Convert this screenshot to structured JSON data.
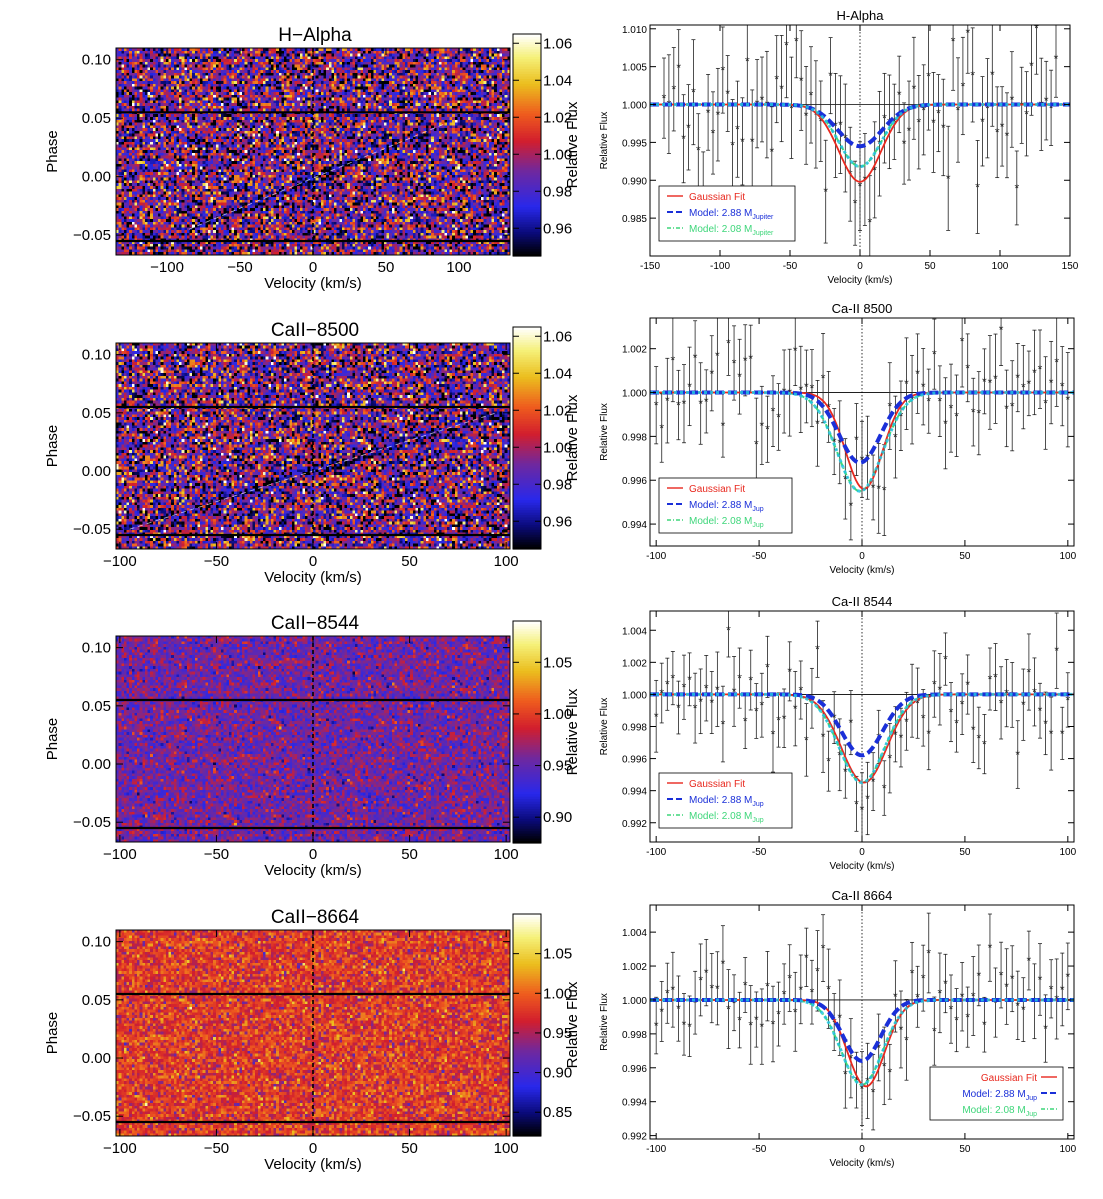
{
  "figure": {
    "colors": {
      "gaussian": "#e8281e",
      "model_288": "#1a2fd8",
      "model_208": "#3ed67a",
      "cyan": "#22c4e0",
      "data": "#222222",
      "axis": "#000000"
    }
  },
  "chart_data": [
    {
      "type": "heatmap",
      "title": "H−Alpha",
      "xlabel": "Velocity (km/s)",
      "ylabel": "Phase",
      "xlim": [
        -135,
        135
      ],
      "ylim": [
        -0.067,
        0.11
      ],
      "xticks": [
        -100,
        -50,
        0,
        50,
        100
      ],
      "xtick_labels": [
        "−100",
        "−50",
        "0",
        "50",
        "100"
      ],
      "yticks": [
        0.1,
        0.05,
        0.0,
        -0.05
      ],
      "ytick_labels": [
        "0.10",
        "0.05",
        "0.00",
        "−0.05"
      ],
      "hlines": [
        0.055,
        -0.055
      ],
      "colorbar": {
        "label": "Relative Flux",
        "range": [
          0.945,
          1.065
        ],
        "ticks": [
          0.96,
          0.98,
          1.0,
          1.02,
          1.04,
          1.06
        ],
        "tick_labels": [
          "0.96",
          "0.98",
          "1.00",
          "1.02",
          "1.04",
          "1.06"
        ]
      },
      "mean_flux": 0.988,
      "noise": 0.03,
      "trail": {
        "from": [
          -85,
          -0.045
        ],
        "to": [
          90,
          0.045
        ]
      }
    },
    {
      "type": "heatmap",
      "title": "CaII−8500",
      "xlabel": "Velocity (km/s)",
      "ylabel": "Phase",
      "xlim": [
        -102,
        102
      ],
      "ylim": [
        -0.067,
        0.11
      ],
      "xticks": [
        -100,
        -50,
        0,
        50,
        100
      ],
      "xtick_labels": [
        "−100",
        "−50",
        "0",
        "50",
        "100"
      ],
      "yticks": [
        0.1,
        0.05,
        0.0,
        -0.05
      ],
      "ytick_labels": [
        "0.10",
        "0.05",
        "0.00",
        "−0.05"
      ],
      "hlines": [
        0.055,
        -0.055
      ],
      "colorbar": {
        "label": "Relative Flux",
        "range": [
          0.945,
          1.065
        ],
        "ticks": [
          0.96,
          0.98,
          1.0,
          1.02,
          1.04,
          1.06
        ],
        "tick_labels": [
          "0.96",
          "0.98",
          "1.00",
          "1.02",
          "1.04",
          "1.06"
        ]
      },
      "mean_flux": 0.988,
      "noise": 0.03,
      "trail": {
        "from": [
          -95,
          -0.05
        ],
        "to": [
          95,
          0.05
        ]
      }
    },
    {
      "type": "heatmap",
      "title": "CaII−8544",
      "xlabel": "Velocity (km/s)",
      "ylabel": "Phase",
      "xlim": [
        -102,
        102
      ],
      "ylim": [
        -0.067,
        0.11
      ],
      "xticks": [
        -100,
        -50,
        0,
        50,
        100
      ],
      "xtick_labels": [
        "−100",
        "−50",
        "0",
        "50",
        "100"
      ],
      "yticks": [
        0.1,
        0.05,
        0.0,
        -0.05
      ],
      "ytick_labels": [
        "0.10",
        "0.05",
        "0.00",
        "−0.05"
      ],
      "hlines": [
        0.055,
        -0.055
      ],
      "colorbar": {
        "label": "Relative Flux",
        "range": [
          0.875,
          1.09
        ],
        "ticks": [
          0.9,
          0.95,
          1.0,
          1.05
        ],
        "tick_labels": [
          "0.90",
          "0.95",
          "1.00",
          "1.05"
        ]
      },
      "mean_flux": 0.955,
      "noise": 0.02,
      "trail": null
    },
    {
      "type": "heatmap",
      "title": "CaII−8664",
      "xlabel": "Velocity (km/s)",
      "ylabel": "Phase",
      "xlim": [
        -102,
        102
      ],
      "ylim": [
        -0.067,
        0.11
      ],
      "xticks": [
        -100,
        -50,
        0,
        50,
        100
      ],
      "xtick_labels": [
        "−100",
        "−50",
        "0",
        "50",
        "100"
      ],
      "yticks": [
        0.1,
        0.05,
        0.0,
        -0.05
      ],
      "ytick_labels": [
        "0.10",
        "0.05",
        "0.00",
        "−0.05"
      ],
      "hlines": [
        0.055,
        -0.055
      ],
      "colorbar": {
        "label": "Relative Flux",
        "range": [
          0.82,
          1.1
        ],
        "ticks": [
          0.85,
          0.9,
          0.95,
          1.0,
          1.05
        ],
        "tick_labels": [
          "0.85",
          "0.90",
          "0.95",
          "1.00",
          "1.05"
        ]
      },
      "mean_flux": 0.98,
      "noise": 0.024,
      "trail": null
    },
    {
      "type": "line",
      "title": "H-Alpha",
      "xlabel": "Velocity (km/s)",
      "ylabel": "Relative Flux",
      "xlim": [
        -150,
        150
      ],
      "ylim": [
        0.98,
        1.0105
      ],
      "xticks": [
        -150,
        -100,
        -50,
        0,
        50,
        100,
        150
      ],
      "xtick_labels": [
        "-150",
        "-100",
        "-50",
        "0",
        "50",
        "100",
        "150"
      ],
      "yticks": [
        0.985,
        0.99,
        0.995,
        1.0,
        1.005,
        1.01
      ],
      "ytick_labels": [
        "0.985",
        "0.990",
        "0.995",
        "1.000",
        "1.005",
        "1.010"
      ],
      "legend_position": "bottom-left",
      "legend": [
        {
          "label": "Gaussian Fit",
          "sub": "",
          "color": "#e8281e"
        },
        {
          "label": "Model: 2.88 M",
          "sub": "Jupiter",
          "color": "#1a2fd8"
        },
        {
          "label": "Model: 2.08 M",
          "sub": "Jupiter",
          "color": "#3ed67a"
        }
      ],
      "series": [
        {
          "name": "Gaussian Fit",
          "depth": 0.0102,
          "center": 0,
          "sigma": 15
        },
        {
          "name": "Model: 2.88 MJupiter",
          "depth": 0.0055,
          "center": 0,
          "sigma": 16
        },
        {
          "name": "Model: 2.08 MJupiter",
          "depth": 0.0082,
          "center": 0,
          "sigma": 15
        }
      ],
      "data": {
        "x_start": -140,
        "x_end": 140,
        "n": 81,
        "noise": 0.0045,
        "error": 0.006
      }
    },
    {
      "type": "line",
      "title": "Ca-II 8500",
      "xlabel": "Velocity (km/s)",
      "ylabel": "Relative Flux",
      "xlim": [
        -103,
        103
      ],
      "ylim": [
        0.993,
        1.0034
      ],
      "xticks": [
        -100,
        -50,
        0,
        50,
        100
      ],
      "xtick_labels": [
        "-100",
        "-50",
        "0",
        "50",
        "100"
      ],
      "yticks": [
        0.994,
        0.996,
        0.998,
        1.0,
        1.002
      ],
      "ytick_labels": [
        "0.994",
        "0.996",
        "0.998",
        "1.000",
        "1.002"
      ],
      "legend_position": "bottom-left",
      "legend": [
        {
          "label": "Gaussian Fit",
          "sub": "",
          "color": "#e8281e"
        },
        {
          "label": "Model: 2.88 M",
          "sub": "Jup",
          "color": "#1a2fd8"
        },
        {
          "label": "Model: 2.08 M",
          "sub": "Jup",
          "color": "#3ed67a"
        }
      ],
      "series": [
        {
          "name": "Gaussian Fit",
          "depth": 0.0044,
          "center": 1,
          "sigma": 9
        },
        {
          "name": "Model: 2.88 MJup",
          "depth": 0.0032,
          "center": -1,
          "sigma": 10
        },
        {
          "name": "Model: 2.08 MJup",
          "depth": 0.0045,
          "center": -1,
          "sigma": 11
        }
      ],
      "data": {
        "x_start": -100,
        "x_end": 100,
        "n": 75,
        "noise": 0.0012,
        "error": 0.0018
      }
    },
    {
      "type": "line",
      "title": "Ca-II 8544",
      "xlabel": "Velocity (km/s)",
      "ylabel": "Relative Flux",
      "xlim": [
        -103,
        103
      ],
      "ylim": [
        0.9908,
        1.0052
      ],
      "xticks": [
        -100,
        -50,
        0,
        50,
        100
      ],
      "xtick_labels": [
        "-100",
        "-50",
        "0",
        "50",
        "100"
      ],
      "yticks": [
        0.992,
        0.994,
        0.996,
        0.998,
        1.0,
        1.002,
        1.004
      ],
      "ytick_labels": [
        "0.992",
        "0.994",
        "0.996",
        "0.998",
        "1.000",
        "1.002",
        "1.004"
      ],
      "legend_position": "bottom-left",
      "legend": [
        {
          "label": "Gaussian Fit",
          "sub": "",
          "color": "#e8281e"
        },
        {
          "label": "Model: 2.88 M",
          "sub": "Jup",
          "color": "#1a2fd8"
        },
        {
          "label": "Model: 2.08 M",
          "sub": "Jup",
          "color": "#3ed67a"
        }
      ],
      "series": [
        {
          "name": "Gaussian Fit",
          "depth": 0.0055,
          "center": 1,
          "sigma": 11
        },
        {
          "name": "Model: 2.88 MJup",
          "depth": 0.0038,
          "center": 0,
          "sigma": 10
        },
        {
          "name": "Model: 2.08 MJup",
          "depth": 0.0055,
          "center": 0,
          "sigma": 11
        }
      ],
      "data": {
        "x_start": -100,
        "x_end": 100,
        "n": 75,
        "noise": 0.0016,
        "error": 0.002
      }
    },
    {
      "type": "line",
      "title": "Ca-II 8664",
      "xlabel": "Velocity (km/s)",
      "ylabel": "Relative Flux",
      "xlim": [
        -103,
        103
      ],
      "ylim": [
        0.9918,
        1.0056
      ],
      "xticks": [
        -100,
        -50,
        0,
        50,
        100
      ],
      "xtick_labels": [
        "-100",
        "-50",
        "0",
        "50",
        "100"
      ],
      "yticks": [
        0.992,
        0.994,
        0.996,
        0.998,
        1.0,
        1.002,
        1.004
      ],
      "ytick_labels": [
        "0.992",
        "0.994",
        "0.996",
        "0.998",
        "1.000",
        "1.002",
        "1.004"
      ],
      "legend_position": "bottom-right",
      "legend": [
        {
          "label": "Gaussian Fit",
          "sub": "",
          "color": "#e8281e"
        },
        {
          "label": "Model: 2.88 M",
          "sub": "Jup",
          "color": "#1a2fd8"
        },
        {
          "label": "Model: 2.08 M",
          "sub": "Jup",
          "color": "#3ed67a"
        }
      ],
      "series": [
        {
          "name": "Gaussian Fit",
          "depth": 0.0051,
          "center": 2,
          "sigma": 9
        },
        {
          "name": "Model: 2.88 MJup",
          "depth": 0.0036,
          "center": 0,
          "sigma": 9
        },
        {
          "name": "Model: 2.08 MJup",
          "depth": 0.005,
          "center": 0,
          "sigma": 10
        }
      ],
      "data": {
        "x_start": -100,
        "x_end": 100,
        "n": 75,
        "noise": 0.0013,
        "error": 0.002
      }
    }
  ]
}
